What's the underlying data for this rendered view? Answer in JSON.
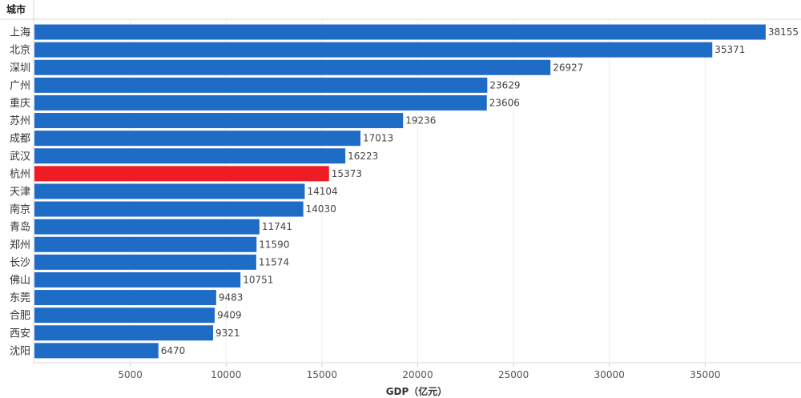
{
  "chart_data": {
    "type": "bar",
    "orientation": "horizontal",
    "category_header": "城市",
    "xlabel": "GDP（亿元）",
    "xlim": [
      0,
      40000
    ],
    "xticks": [
      5000,
      10000,
      15000,
      20000,
      25000,
      30000,
      35000
    ],
    "grid": true,
    "categories": [
      "上海",
      "北京",
      "深圳",
      "广州",
      "重庆",
      "苏州",
      "成都",
      "武汉",
      "杭州",
      "天津",
      "南京",
      "青岛",
      "郑州",
      "长沙",
      "佛山",
      "东莞",
      "合肥",
      "西安",
      "沈阳"
    ],
    "values": [
      38155,
      35371,
      26927,
      23629,
      23606,
      19236,
      17013,
      16223,
      15373,
      14104,
      14030,
      11741,
      11590,
      11574,
      10751,
      9483,
      9409,
      9321,
      6470
    ],
    "bar_color": "#1f6cc6",
    "highlight_color": "#ee1c25",
    "highlight_category": "杭州"
  }
}
